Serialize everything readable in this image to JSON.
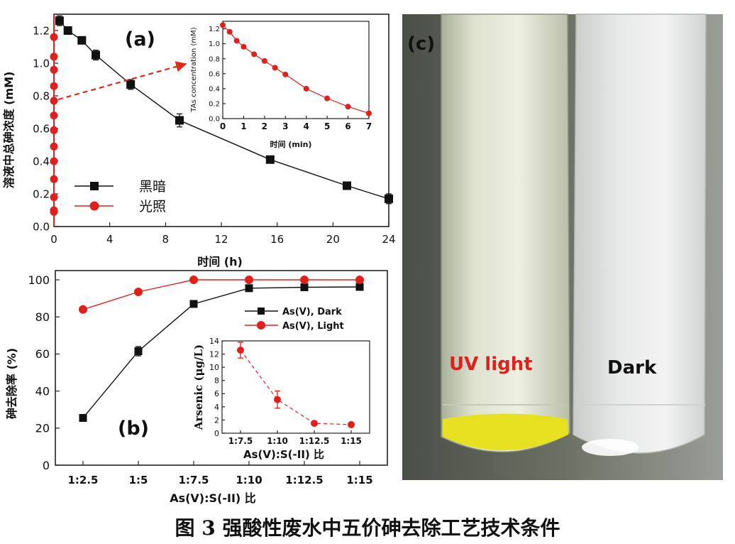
{
  "colors": {
    "dark": "#111111",
    "light": "#e0201a",
    "arrow": "#e02a1a"
  },
  "icons": {
    "dark_marker": "filled-square",
    "light_marker": "filled-circle"
  },
  "caption": "图 3  强酸性废水中五价砷去除工艺技术条件",
  "photo": {
    "panel_label": "(c)",
    "left_tube_label": "UV light",
    "right_tube_label": "Dark",
    "left_label_color": "#e0201a",
    "right_label_color": "#111111",
    "precipitate_color": "#e6e020"
  },
  "chart_data": [
    {
      "id": "a",
      "type": "line",
      "panel_label": "(a)",
      "xlabel": "时间 (h)",
      "ylabel": "溶液中总砷浓度 (mM)",
      "xlim": [
        0,
        24
      ],
      "ylim": [
        0,
        1.3
      ],
      "xticks": [
        0,
        4,
        8,
        12,
        16,
        20,
        24
      ],
      "yticks": [
        "0.0",
        "0.2",
        "0.4",
        "0.6",
        "0.8",
        "1.0",
        "1.2"
      ],
      "legend_position": "bottom-left",
      "series": [
        {
          "name": "黑暗",
          "marker": "square",
          "x": [
            0.4,
            1.0,
            2.0,
            3.0,
            5.5,
            9.0,
            15.5,
            21.0,
            24.0
          ],
          "y": [
            1.26,
            1.2,
            1.14,
            1.05,
            0.87,
            0.65,
            0.41,
            0.25,
            0.17
          ],
          "err": [
            0.03,
            0.01,
            0.02,
            0.03,
            0.03,
            0.04,
            0.01,
            0.01,
            0.03
          ]
        },
        {
          "name": "光照",
          "marker": "circle",
          "x": [
            0,
            0,
            0,
            0,
            0,
            0,
            0,
            0,
            0,
            0,
            0,
            0,
            0
          ],
          "y": [
            1.16,
            1.04,
            0.96,
            0.86,
            0.77,
            0.68,
            0.59,
            0.49,
            0.4,
            0.29,
            0.18,
            0.1,
            0.09
          ],
          "err": [
            0,
            0,
            0,
            0,
            0,
            0,
            0,
            0,
            0,
            0,
            0,
            0,
            0
          ]
        }
      ],
      "inset": {
        "type": "line",
        "xlabel": "时间 (min)",
        "ylabel": "TAs concentration (mM)",
        "xlim": [
          0,
          7
        ],
        "ylim": [
          0,
          1.3
        ],
        "xticks": [
          0,
          1,
          2,
          3,
          4,
          5,
          6,
          7
        ],
        "yticks": [
          "0.0",
          "0.2",
          "0.4",
          "0.6",
          "0.8",
          "1.0",
          "1.2"
        ],
        "series": [
          {
            "name": "光照",
            "x": [
              0,
              0.33,
              0.67,
              1.0,
              1.5,
              2.0,
              2.5,
              3.0,
              4.0,
              5.0,
              6.0,
              7.0
            ],
            "y": [
              1.25,
              1.16,
              1.04,
              0.96,
              0.86,
              0.77,
              0.68,
              0.59,
              0.4,
              0.27,
              0.16,
              0.07
            ]
          }
        ]
      }
    },
    {
      "id": "b",
      "type": "line",
      "panel_label": "(b)",
      "xlabel": "As(V):S(-II) 比",
      "ylabel": "砷去除率 (%)",
      "categories": [
        "1:2.5",
        "1:5",
        "1:7.5",
        "1:10",
        "1:12.5",
        "1:15"
      ],
      "ylim": [
        0,
        105
      ],
      "yticks": [
        "0",
        "20",
        "40",
        "60",
        "80",
        "100"
      ],
      "legend_position": "top-right",
      "series": [
        {
          "name": "As(V), Dark",
          "marker": "square",
          "values": [
            25.5,
            61.5,
            87.0,
            95.5,
            96.0,
            96.2
          ],
          "err": [
            0,
            2.5,
            1.5,
            1.5,
            0.5,
            0.5
          ]
        },
        {
          "name": "As(V), Light",
          "marker": "circle",
          "values": [
            84.0,
            93.5,
            100,
            100,
            100,
            100
          ],
          "err": [
            0,
            0,
            0,
            0,
            0,
            0
          ]
        }
      ],
      "inset": {
        "type": "line",
        "xlabel": "As(V):S(-II) 比",
        "ylabel": "Arsenic (μg/L)",
        "categories": [
          "1:7.5",
          "1:10",
          "1:12.5",
          "1:15"
        ],
        "ylim": [
          0,
          14
        ],
        "yticks": [
          "0",
          "2",
          "4",
          "6",
          "8",
          "10",
          "12",
          "14"
        ],
        "series": [
          {
            "name": "As(V), Light",
            "values": [
              12.6,
              5.1,
              1.5,
              1.3
            ],
            "err": [
              1.2,
              1.3,
              0.2,
              0.2
            ]
          }
        ]
      }
    }
  ]
}
